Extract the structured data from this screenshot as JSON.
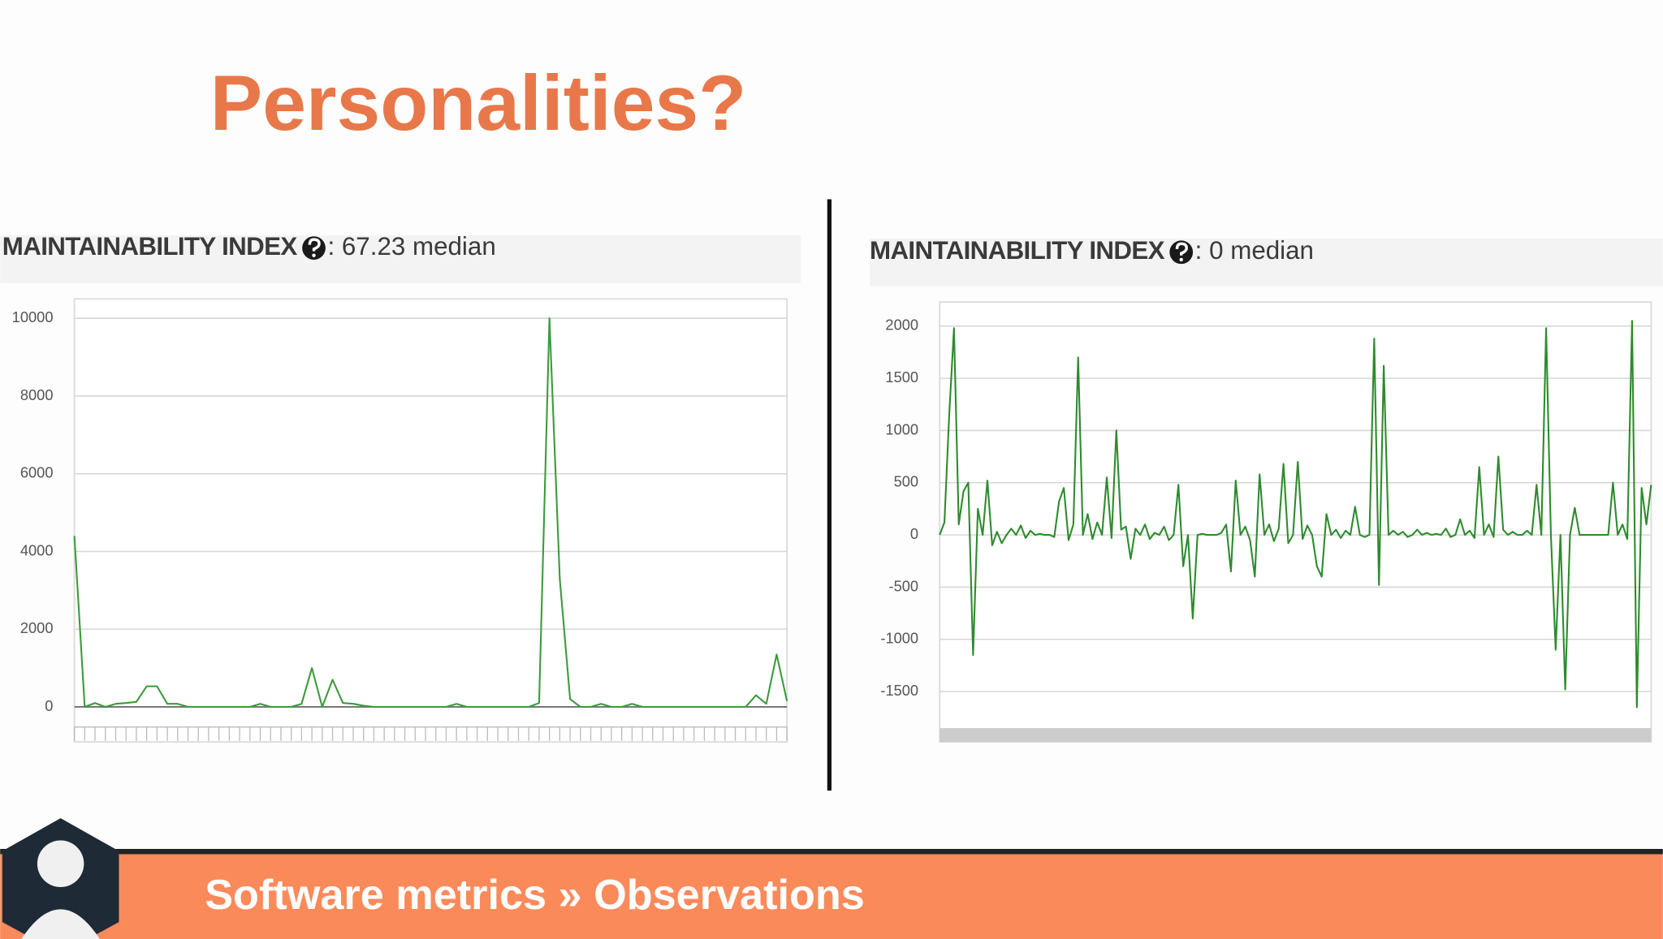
{
  "slide_title": "Personalities?",
  "footer": "Software metrics » Observations",
  "chart_data": [
    {
      "type": "line",
      "title": "MAINTAINABILITY INDEX",
      "subtitle": ": 67.23 median",
      "color": "#3d9a3d",
      "ylim": [
        0,
        10500
      ],
      "yticks": [
        0,
        2000,
        4000,
        6000,
        8000,
        10000
      ],
      "grid": true,
      "categories": [
        null,
        null,
        null,
        null,
        null,
        null,
        null,
        null,
        null,
        null,
        null,
        null,
        null,
        null,
        null,
        null,
        null,
        null,
        null,
        null,
        null,
        null,
        null,
        null,
        null,
        null,
        null,
        null,
        null,
        null,
        null,
        null,
        null,
        null,
        null,
        null,
        null,
        null,
        null,
        null,
        null,
        null,
        null,
        null,
        null,
        null,
        null,
        null,
        null,
        null,
        null,
        null,
        null,
        null,
        null,
        null,
        null,
        null,
        null,
        null,
        null,
        null,
        null,
        null,
        null,
        null,
        null,
        null,
        null,
        null
      ],
      "values": [
        4400,
        0,
        100,
        0,
        80,
        100,
        130,
        530,
        530,
        80,
        80,
        0,
        0,
        0,
        0,
        0,
        0,
        0,
        80,
        0,
        0,
        0,
        80,
        1000,
        0,
        700,
        100,
        80,
        30,
        0,
        0,
        0,
        0,
        0,
        0,
        0,
        0,
        80,
        0,
        0,
        0,
        0,
        0,
        0,
        0,
        100,
        10000,
        3300,
        200,
        0,
        0,
        80,
        0,
        0,
        80,
        0,
        0,
        0,
        0,
        0,
        0,
        0,
        0,
        0,
        0,
        0,
        300,
        80,
        1350,
        150
      ]
    },
    {
      "type": "line",
      "title": "MAINTAINABILITY INDEX",
      "subtitle": ": 0 median",
      "color": "#2e8b2e",
      "ylim": [
        -1850,
        2230
      ],
      "yticks": [
        -1500,
        -1000,
        -500,
        0,
        500,
        1000,
        1500,
        2000
      ],
      "grid": true,
      "values": [
        0,
        120,
        1150,
        1980,
        100,
        420,
        500,
        -1150,
        250,
        0,
        520,
        -100,
        30,
        -80,
        0,
        60,
        0,
        90,
        -30,
        40,
        0,
        10,
        0,
        0,
        -20,
        320,
        450,
        -50,
        100,
        1700,
        0,
        200,
        -40,
        120,
        0,
        550,
        -30,
        1000,
        50,
        80,
        -230,
        60,
        0,
        100,
        -40,
        20,
        0,
        80,
        -50,
        0,
        480,
        -300,
        0,
        -800,
        0,
        10,
        0,
        0,
        0,
        20,
        100,
        -350,
        520,
        0,
        80,
        -50,
        -400,
        580,
        0,
        100,
        -60,
        60,
        680,
        -80,
        0,
        700,
        -40,
        90,
        0,
        -300,
        -400,
        200,
        0,
        50,
        -30,
        40,
        0,
        270,
        0,
        -20,
        0,
        1880,
        -480,
        1620,
        0,
        40,
        0,
        30,
        -20,
        0,
        50,
        0,
        20,
        0,
        10,
        0,
        60,
        -20,
        0,
        150,
        0,
        40,
        -30,
        650,
        0,
        100,
        -20,
        750,
        50,
        0,
        30,
        0,
        0,
        40,
        0,
        480,
        0,
        1980,
        0,
        -1100,
        0,
        -1480,
        0,
        260,
        0,
        0,
        0,
        0,
        0,
        0,
        0,
        500,
        0,
        100,
        -40,
        2050,
        -1650,
        450,
        100,
        480
      ]
    }
  ]
}
